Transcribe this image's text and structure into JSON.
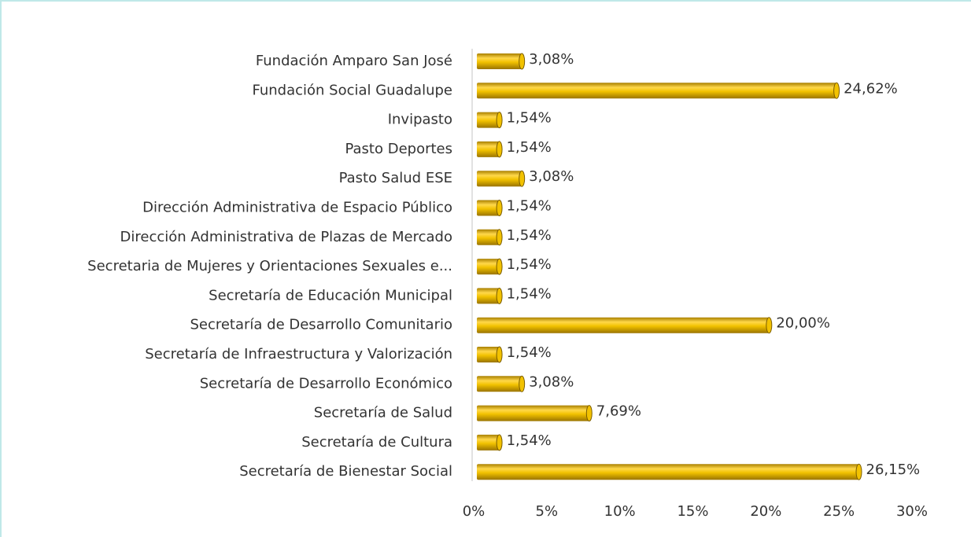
{
  "chart_data": {
    "type": "bar",
    "orientation": "horizontal",
    "categories": [
      "Fundación Amparo San José",
      "Fundación Social Guadalupe",
      "Invipasto",
      "Pasto Deportes",
      "Pasto Salud ESE",
      "Dirección Administrativa de Espacio Público",
      "Dirección Administrativa de Plazas de Mercado",
      "Secretaria de Mujeres y Orientaciones Sexuales e...",
      "Secretaría de Educación Municipal",
      "Secretaría de Desarrollo Comunitario",
      "Secretaría de Infraestructura y Valorización",
      "Secretaría de Desarrollo Económico",
      "Secretaría de Salud",
      "Secretaría de Cultura",
      "Secretaría de Bienestar Social"
    ],
    "values": [
      3.08,
      24.62,
      1.54,
      1.54,
      3.08,
      1.54,
      1.54,
      1.54,
      1.54,
      20.0,
      1.54,
      3.08,
      7.69,
      1.54,
      26.15
    ],
    "value_labels": [
      "3,08%",
      "24,62%",
      "1,54%",
      "1,54%",
      "3,08%",
      "1,54%",
      "1,54%",
      "1,54%",
      "1,54%",
      "20,00%",
      "1,54%",
      "3,08%",
      "7,69%",
      "1,54%",
      "26,15%"
    ],
    "color": "#f2c200",
    "xlim": [
      0,
      30
    ],
    "xticks": [
      {
        "value": 0,
        "label": "0%"
      },
      {
        "value": 5,
        "label": "5%"
      },
      {
        "value": 10,
        "label": "10%"
      },
      {
        "value": 15,
        "label": "15%"
      },
      {
        "value": 20,
        "label": "20%"
      },
      {
        "value": 25,
        "label": "25%"
      },
      {
        "value": 30,
        "label": "30%"
      }
    ]
  }
}
